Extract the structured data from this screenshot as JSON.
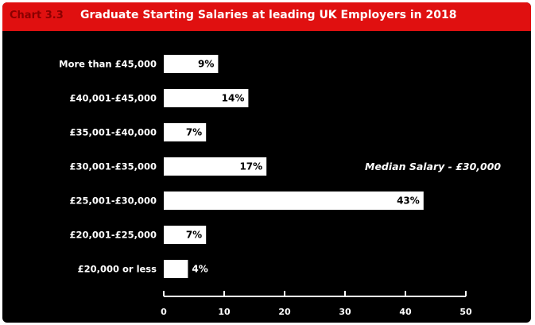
{
  "header": {
    "chart_number": "Chart 3.3",
    "title": "Graduate Starting Salaries at leading UK Employers in 2018"
  },
  "colors": {
    "header_bg": "#e01010",
    "header_number": "#8a0000",
    "background": "#000000",
    "bar": "#ffffff",
    "text": "#ffffff"
  },
  "annotation": "Median Salary - £30,000",
  "chart_data": {
    "type": "bar",
    "orientation": "horizontal",
    "title": "Graduate Starting Salaries at leading UK Employers in 2018",
    "categories": [
      "More than £45,000",
      "£40,001-£45,000",
      "£35,001-£40,000",
      "£30,001-£35,000",
      "£25,001-£30,000",
      "£20,001-£25,000",
      "£20,000 or less"
    ],
    "values": [
      9,
      14,
      7,
      17,
      43,
      7,
      4
    ],
    "value_labels": [
      "9%",
      "14%",
      "7%",
      "17%",
      "43%",
      "7%",
      "4%"
    ],
    "xlim": [
      0,
      50
    ],
    "xticks": [
      0,
      10,
      20,
      30,
      40,
      50
    ],
    "xlabel": "",
    "ylabel": "",
    "grid": false,
    "legend": "none"
  }
}
